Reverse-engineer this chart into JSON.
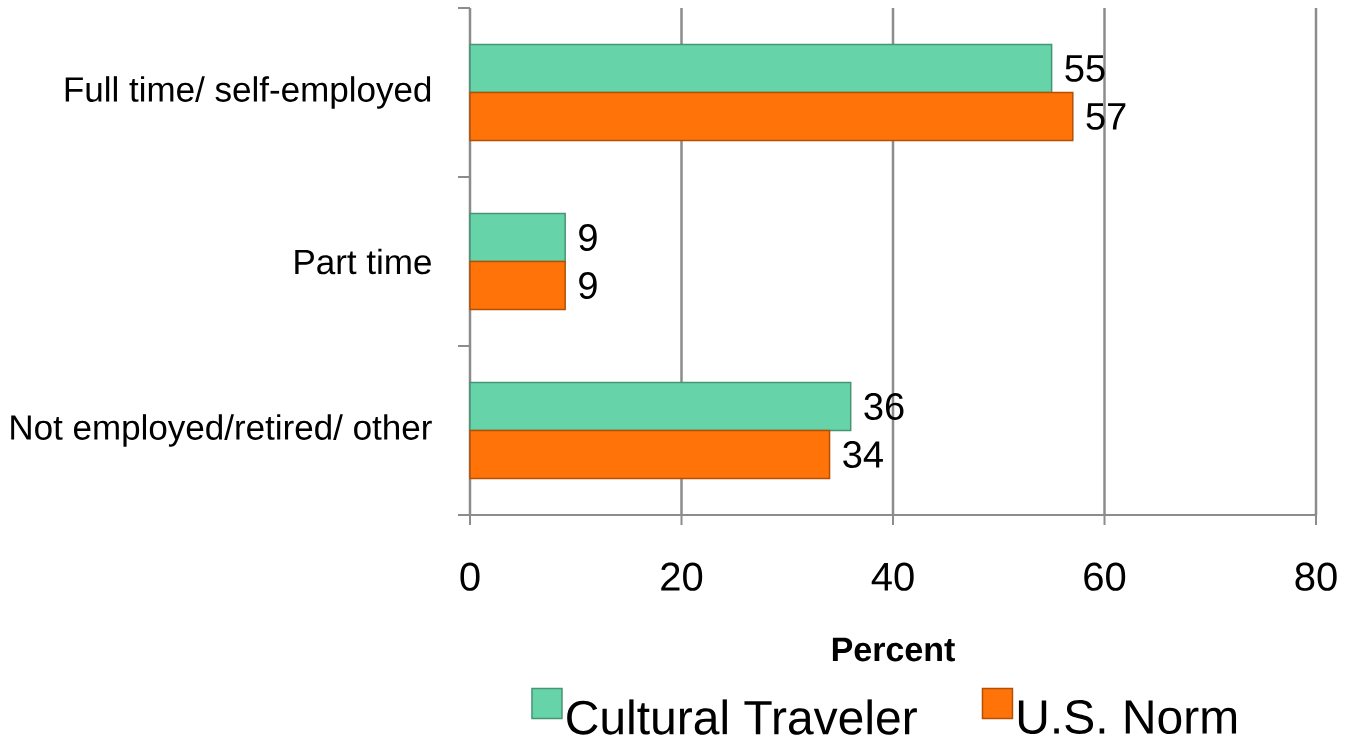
{
  "chart_data": {
    "type": "bar",
    "orientation": "horizontal",
    "categories": [
      "Full time/ self-employed",
      "Part time",
      "Not employed/retired/ other"
    ],
    "series": [
      {
        "name": "Cultural Traveler",
        "color": "#66d4a8",
        "values": [
          55,
          9,
          36
        ]
      },
      {
        "name": "U.S. Norm",
        "color": "#ff7308",
        "values": [
          57,
          9,
          34
        ]
      }
    ],
    "xlabel": "Percent",
    "xlim": [
      0,
      80
    ],
    "xticks": [
      0,
      20,
      40,
      60,
      80
    ],
    "grid": "x",
    "legend": "bottom",
    "data_labels": true
  }
}
